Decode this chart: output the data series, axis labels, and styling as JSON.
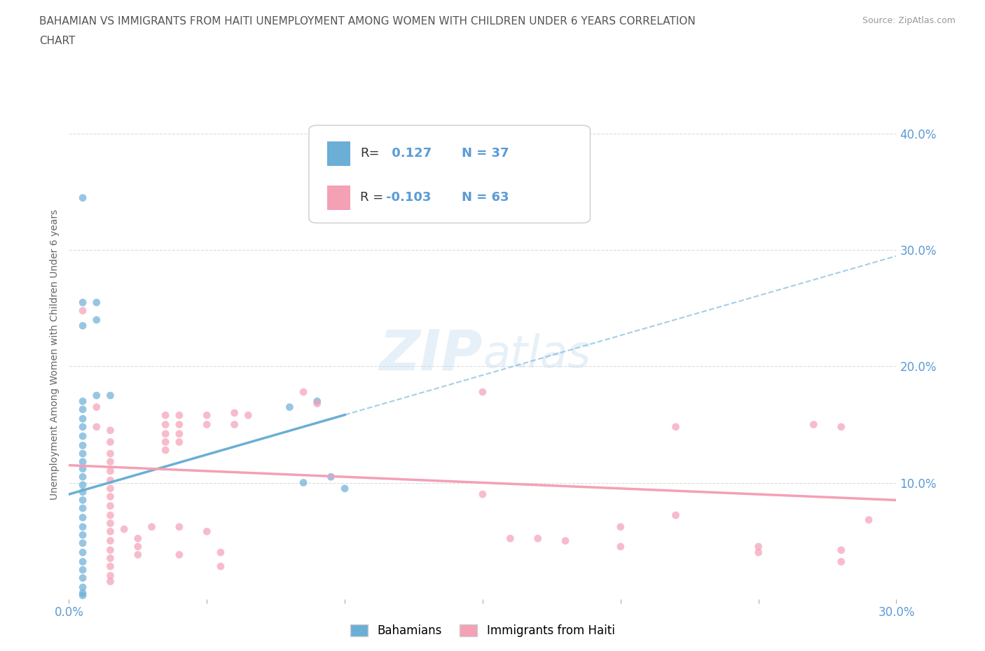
{
  "title_line1": "BAHAMIAN VS IMMIGRANTS FROM HAITI UNEMPLOYMENT AMONG WOMEN WITH CHILDREN UNDER 6 YEARS CORRELATION",
  "title_line2": "CHART",
  "source": "Source: ZipAtlas.com",
  "ylabel": "Unemployment Among Women with Children Under 6 years",
  "xlim": [
    0.0,
    0.3
  ],
  "ylim": [
    0.0,
    0.42
  ],
  "xticks": [
    0.0,
    0.05,
    0.1,
    0.15,
    0.2,
    0.25,
    0.3
  ],
  "xticklabels": [
    "0.0%",
    "",
    "",
    "",
    "",
    "",
    "30.0%"
  ],
  "yticks": [
    0.0,
    0.1,
    0.2,
    0.3,
    0.4
  ],
  "yticklabels": [
    "",
    "10.0%",
    "20.0%",
    "30.0%",
    "40.0%"
  ],
  "bahamian_color": "#6baed6",
  "haiti_color": "#f4a0b5",
  "bahamian_R": 0.127,
  "bahamian_N": 37,
  "haiti_R": -0.103,
  "haiti_N": 63,
  "legend_label_bahamian": "Bahamians",
  "legend_label_haiti": "Immigrants from Haiti",
  "watermark": "ZIPatlas",
  "bah_trend_x0": 0.0,
  "bah_trend_y0": 0.09,
  "bah_trend_x1": 0.3,
  "bah_trend_y1": 0.295,
  "hai_trend_x0": 0.0,
  "hai_trend_y0": 0.115,
  "hai_trend_x1": 0.3,
  "hai_trend_y1": 0.085,
  "bahamian_points": [
    [
      0.005,
      0.345
    ],
    [
      0.005,
      0.255
    ],
    [
      0.005,
      0.235
    ],
    [
      0.01,
      0.255
    ],
    [
      0.01,
      0.24
    ],
    [
      0.01,
      0.175
    ],
    [
      0.015,
      0.175
    ],
    [
      0.005,
      0.17
    ],
    [
      0.005,
      0.163
    ],
    [
      0.005,
      0.155
    ],
    [
      0.005,
      0.148
    ],
    [
      0.005,
      0.14
    ],
    [
      0.005,
      0.132
    ],
    [
      0.005,
      0.125
    ],
    [
      0.005,
      0.118
    ],
    [
      0.005,
      0.112
    ],
    [
      0.005,
      0.105
    ],
    [
      0.005,
      0.098
    ],
    [
      0.005,
      0.092
    ],
    [
      0.005,
      0.085
    ],
    [
      0.005,
      0.078
    ],
    [
      0.005,
      0.07
    ],
    [
      0.005,
      0.062
    ],
    [
      0.005,
      0.055
    ],
    [
      0.005,
      0.048
    ],
    [
      0.005,
      0.04
    ],
    [
      0.005,
      0.032
    ],
    [
      0.005,
      0.025
    ],
    [
      0.005,
      0.018
    ],
    [
      0.005,
      0.01
    ],
    [
      0.005,
      0.005
    ],
    [
      0.005,
      0.003
    ],
    [
      0.08,
      0.165
    ],
    [
      0.09,
      0.17
    ],
    [
      0.085,
      0.1
    ],
    [
      0.095,
      0.105
    ],
    [
      0.1,
      0.095
    ]
  ],
  "haiti_points": [
    [
      0.005,
      0.248
    ],
    [
      0.01,
      0.165
    ],
    [
      0.01,
      0.148
    ],
    [
      0.015,
      0.145
    ],
    [
      0.015,
      0.135
    ],
    [
      0.015,
      0.125
    ],
    [
      0.015,
      0.118
    ],
    [
      0.015,
      0.11
    ],
    [
      0.015,
      0.102
    ],
    [
      0.015,
      0.095
    ],
    [
      0.015,
      0.088
    ],
    [
      0.015,
      0.08
    ],
    [
      0.015,
      0.072
    ],
    [
      0.015,
      0.065
    ],
    [
      0.015,
      0.058
    ],
    [
      0.015,
      0.05
    ],
    [
      0.015,
      0.042
    ],
    [
      0.015,
      0.035
    ],
    [
      0.015,
      0.028
    ],
    [
      0.015,
      0.02
    ],
    [
      0.015,
      0.015
    ],
    [
      0.02,
      0.06
    ],
    [
      0.025,
      0.052
    ],
    [
      0.025,
      0.045
    ],
    [
      0.025,
      0.038
    ],
    [
      0.03,
      0.062
    ],
    [
      0.035,
      0.158
    ],
    [
      0.035,
      0.15
    ],
    [
      0.035,
      0.142
    ],
    [
      0.035,
      0.135
    ],
    [
      0.035,
      0.128
    ],
    [
      0.04,
      0.158
    ],
    [
      0.04,
      0.15
    ],
    [
      0.04,
      0.142
    ],
    [
      0.04,
      0.135
    ],
    [
      0.04,
      0.062
    ],
    [
      0.04,
      0.038
    ],
    [
      0.05,
      0.158
    ],
    [
      0.05,
      0.15
    ],
    [
      0.05,
      0.058
    ],
    [
      0.055,
      0.04
    ],
    [
      0.055,
      0.028
    ],
    [
      0.06,
      0.16
    ],
    [
      0.06,
      0.15
    ],
    [
      0.065,
      0.158
    ],
    [
      0.085,
      0.178
    ],
    [
      0.09,
      0.168
    ],
    [
      0.15,
      0.178
    ],
    [
      0.15,
      0.09
    ],
    [
      0.16,
      0.052
    ],
    [
      0.17,
      0.052
    ],
    [
      0.18,
      0.05
    ],
    [
      0.2,
      0.062
    ],
    [
      0.2,
      0.045
    ],
    [
      0.22,
      0.148
    ],
    [
      0.22,
      0.072
    ],
    [
      0.25,
      0.045
    ],
    [
      0.25,
      0.04
    ],
    [
      0.27,
      0.15
    ],
    [
      0.28,
      0.042
    ],
    [
      0.28,
      0.032
    ],
    [
      0.28,
      0.148
    ],
    [
      0.29,
      0.068
    ]
  ],
  "background_color": "#ffffff",
  "grid_color": "#dddddd"
}
